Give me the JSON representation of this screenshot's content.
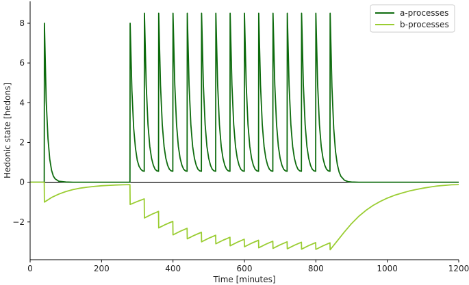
{
  "chart_data": {
    "type": "line",
    "title": "",
    "xlabel": "Time [minutes]",
    "ylabel": "Hedonic state [hedons]",
    "xlim": [
      0,
      1200
    ],
    "ylim": [
      -3.9,
      9.1
    ],
    "xticks": [
      0,
      200,
      400,
      600,
      800,
      1000,
      1200
    ],
    "yticks": [
      -2,
      0,
      2,
      4,
      6,
      8
    ],
    "grid": false,
    "legend": {
      "placement": "top-right"
    },
    "zero_line": {
      "y": 0,
      "color": "#000000"
    },
    "series": [
      {
        "name": "a-processes",
        "color": "#0d6b0d",
        "points": [
          [
            0,
            0
          ],
          [
            39.5,
            0
          ],
          [
            40,
            8.0
          ],
          [
            45,
            4.1
          ],
          [
            50,
            2.2
          ],
          [
            55,
            1.15
          ],
          [
            60,
            0.6
          ],
          [
            65,
            0.31
          ],
          [
            70,
            0.17
          ],
          [
            80,
            0.05
          ],
          [
            100,
            0.01
          ],
          [
            120,
            0
          ],
          [
            279.5,
            0
          ],
          [
            280,
            8.0
          ],
          [
            285,
            4.6
          ],
          [
            290,
            2.7
          ],
          [
            295,
            1.7
          ],
          [
            300,
            1.1
          ],
          [
            305,
            0.8
          ],
          [
            310,
            0.65
          ],
          [
            315,
            0.57
          ],
          [
            319.5,
            0.55
          ],
          [
            320,
            8.5
          ],
          [
            325,
            4.9
          ],
          [
            330,
            2.9
          ],
          [
            335,
            1.8
          ],
          [
            340,
            1.2
          ],
          [
            345,
            0.85
          ],
          [
            350,
            0.65
          ],
          [
            355,
            0.57
          ],
          [
            359.5,
            0.55
          ],
          [
            360,
            8.5
          ],
          [
            365,
            4.9
          ],
          [
            370,
            2.9
          ],
          [
            375,
            1.8
          ],
          [
            380,
            1.2
          ],
          [
            385,
            0.85
          ],
          [
            390,
            0.65
          ],
          [
            395,
            0.57
          ],
          [
            399.5,
            0.55
          ],
          [
            400,
            8.5
          ],
          [
            405,
            4.9
          ],
          [
            410,
            2.9
          ],
          [
            415,
            1.8
          ],
          [
            420,
            1.2
          ],
          [
            425,
            0.85
          ],
          [
            430,
            0.65
          ],
          [
            435,
            0.57
          ],
          [
            439.5,
            0.55
          ],
          [
            440,
            8.5
          ],
          [
            445,
            4.9
          ],
          [
            450,
            2.9
          ],
          [
            455,
            1.8
          ],
          [
            460,
            1.2
          ],
          [
            465,
            0.85
          ],
          [
            470,
            0.65
          ],
          [
            475,
            0.57
          ],
          [
            479.5,
            0.55
          ],
          [
            480,
            8.5
          ],
          [
            485,
            4.9
          ],
          [
            490,
            2.9
          ],
          [
            495,
            1.8
          ],
          [
            500,
            1.2
          ],
          [
            505,
            0.85
          ],
          [
            510,
            0.65
          ],
          [
            515,
            0.57
          ],
          [
            519.5,
            0.55
          ],
          [
            520,
            8.5
          ],
          [
            525,
            4.9
          ],
          [
            530,
            2.9
          ],
          [
            535,
            1.8
          ],
          [
            540,
            1.2
          ],
          [
            545,
            0.85
          ],
          [
            550,
            0.65
          ],
          [
            555,
            0.57
          ],
          [
            559.5,
            0.55
          ],
          [
            560,
            8.5
          ],
          [
            565,
            4.9
          ],
          [
            570,
            2.9
          ],
          [
            575,
            1.8
          ],
          [
            580,
            1.2
          ],
          [
            585,
            0.85
          ],
          [
            590,
            0.65
          ],
          [
            595,
            0.57
          ],
          [
            599.5,
            0.55
          ],
          [
            600,
            8.5
          ],
          [
            605,
            4.9
          ],
          [
            610,
            2.9
          ],
          [
            615,
            1.8
          ],
          [
            620,
            1.2
          ],
          [
            625,
            0.85
          ],
          [
            630,
            0.65
          ],
          [
            635,
            0.57
          ],
          [
            639.5,
            0.55
          ],
          [
            640,
            8.5
          ],
          [
            645,
            4.9
          ],
          [
            650,
            2.9
          ],
          [
            655,
            1.8
          ],
          [
            660,
            1.2
          ],
          [
            665,
            0.85
          ],
          [
            670,
            0.65
          ],
          [
            675,
            0.57
          ],
          [
            679.5,
            0.55
          ],
          [
            680,
            8.5
          ],
          [
            685,
            4.9
          ],
          [
            690,
            2.9
          ],
          [
            695,
            1.8
          ],
          [
            700,
            1.2
          ],
          [
            705,
            0.85
          ],
          [
            710,
            0.65
          ],
          [
            715,
            0.57
          ],
          [
            719.5,
            0.55
          ],
          [
            720,
            8.5
          ],
          [
            725,
            4.9
          ],
          [
            730,
            2.9
          ],
          [
            735,
            1.8
          ],
          [
            740,
            1.2
          ],
          [
            745,
            0.85
          ],
          [
            750,
            0.65
          ],
          [
            755,
            0.57
          ],
          [
            759.5,
            0.55
          ],
          [
            760,
            8.5
          ],
          [
            765,
            4.9
          ],
          [
            770,
            2.9
          ],
          [
            775,
            1.8
          ],
          [
            780,
            1.2
          ],
          [
            785,
            0.85
          ],
          [
            790,
            0.65
          ],
          [
            795,
            0.57
          ],
          [
            799.5,
            0.55
          ],
          [
            800,
            8.5
          ],
          [
            805,
            4.9
          ],
          [
            810,
            2.9
          ],
          [
            815,
            1.8
          ],
          [
            820,
            1.2
          ],
          [
            825,
            0.85
          ],
          [
            830,
            0.65
          ],
          [
            835,
            0.57
          ],
          [
            839.5,
            0.55
          ],
          [
            840,
            8.5
          ],
          [
            845,
            4.8
          ],
          [
            850,
            2.7
          ],
          [
            855,
            1.55
          ],
          [
            860,
            0.9
          ],
          [
            865,
            0.52
          ],
          [
            870,
            0.3
          ],
          [
            880,
            0.1
          ],
          [
            890,
            0.03
          ],
          [
            900,
            0.01
          ],
          [
            920,
            0
          ],
          [
            1200,
            0
          ]
        ]
      },
      {
        "name": "b-processes",
        "color": "#9acd32",
        "points": [
          [
            0,
            0
          ],
          [
            39.5,
            0
          ],
          [
            40,
            -1.0
          ],
          [
            60,
            -0.77
          ],
          [
            80,
            -0.6
          ],
          [
            100,
            -0.47
          ],
          [
            120,
            -0.37
          ],
          [
            140,
            -0.3
          ],
          [
            160,
            -0.25
          ],
          [
            180,
            -0.21
          ],
          [
            200,
            -0.18
          ],
          [
            220,
            -0.16
          ],
          [
            240,
            -0.14
          ],
          [
            260,
            -0.13
          ],
          [
            279.5,
            -0.12
          ],
          [
            280,
            -1.12
          ],
          [
            300,
            -0.97
          ],
          [
            319.5,
            -0.84
          ],
          [
            320,
            -1.8
          ],
          [
            340,
            -1.62
          ],
          [
            359.5,
            -1.47
          ],
          [
            360,
            -2.3
          ],
          [
            380,
            -2.12
          ],
          [
            399.5,
            -1.97
          ],
          [
            400,
            -2.65
          ],
          [
            420,
            -2.47
          ],
          [
            439.5,
            -2.32
          ],
          [
            440,
            -2.85
          ],
          [
            460,
            -2.67
          ],
          [
            479.5,
            -2.52
          ],
          [
            480,
            -3.0
          ],
          [
            500,
            -2.82
          ],
          [
            519.5,
            -2.67
          ],
          [
            520,
            -3.1
          ],
          [
            540,
            -2.92
          ],
          [
            559.5,
            -2.77
          ],
          [
            560,
            -3.2
          ],
          [
            580,
            -3.02
          ],
          [
            599.5,
            -2.87
          ],
          [
            600,
            -3.25
          ],
          [
            620,
            -3.07
          ],
          [
            639.5,
            -2.92
          ],
          [
            640,
            -3.3
          ],
          [
            660,
            -3.12
          ],
          [
            679.5,
            -2.97
          ],
          [
            680,
            -3.33
          ],
          [
            700,
            -3.15
          ],
          [
            719.5,
            -3.0
          ],
          [
            720,
            -3.35
          ],
          [
            740,
            -3.17
          ],
          [
            759.5,
            -3.02
          ],
          [
            760,
            -3.37
          ],
          [
            780,
            -3.19
          ],
          [
            799.5,
            -3.04
          ],
          [
            800,
            -3.38
          ],
          [
            820,
            -3.2
          ],
          [
            839.5,
            -3.05
          ],
          [
            840,
            -3.4
          ],
          [
            860,
            -2.95
          ],
          [
            880,
            -2.5
          ],
          [
            900,
            -2.08
          ],
          [
            920,
            -1.72
          ],
          [
            940,
            -1.42
          ],
          [
            960,
            -1.17
          ],
          [
            980,
            -0.97
          ],
          [
            1000,
            -0.8
          ],
          [
            1020,
            -0.66
          ],
          [
            1040,
            -0.55
          ],
          [
            1060,
            -0.45
          ],
          [
            1080,
            -0.37
          ],
          [
            1100,
            -0.3
          ],
          [
            1120,
            -0.24
          ],
          [
            1140,
            -0.19
          ],
          [
            1160,
            -0.16
          ],
          [
            1180,
            -0.13
          ],
          [
            1200,
            -0.12
          ]
        ]
      }
    ]
  }
}
